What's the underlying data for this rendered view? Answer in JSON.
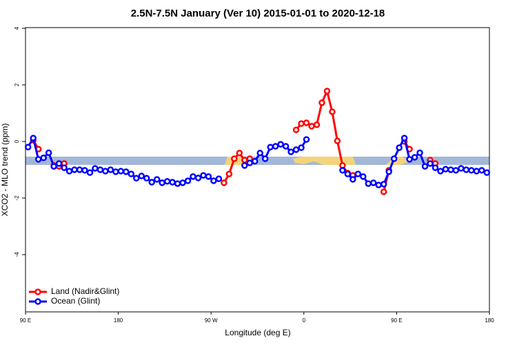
{
  "chart_data": {
    "type": "line",
    "title": "2.5N-7.5N January (Ver 10)   2015-01-01 to 2020-12-18",
    "x_label": "Longitude (deg E)",
    "y_label": "XCO2 - MLO trend (ppm)",
    "xlim": [
      90,
      540
    ],
    "ylim": [
      -6,
      4
    ],
    "xticks": [
      {
        "value": 90,
        "label": "90 E"
      },
      180,
      {
        "value": 270,
        "label": "90 W"
      },
      {
        "value": 360,
        "label": "0"
      },
      {
        "value": 450,
        "label": "90 E"
      },
      {
        "value": 540,
        "label": "180"
      }
    ],
    "yticks": [
      4,
      2,
      0,
      -2,
      -4
    ],
    "legend": "bottom-left",
    "x": [
      92.5,
      97.5,
      102.5,
      107.5,
      112.5,
      117.5,
      122.5,
      127.5,
      132.5,
      137.5,
      142.5,
      147.5,
      152.5,
      157.5,
      162.5,
      167.5,
      172.5,
      177.5,
      182.5,
      187.5,
      192.5,
      197.5,
      202.5,
      207.5,
      212.5,
      217.5,
      222.5,
      227.5,
      232.5,
      237.5,
      242.5,
      247.5,
      252.5,
      257.5,
      262.5,
      267.5,
      272.5,
      277.5,
      282.5,
      287.5,
      292.5,
      297.5,
      302.5,
      307.5,
      312.5,
      317.5,
      322.5,
      327.5,
      332.5,
      337.5,
      342.5,
      347.5,
      352.5,
      357.5,
      362.5,
      367.5,
      372.5,
      377.5,
      382.5,
      387.5,
      392.5,
      397.5,
      402.5,
      407.5,
      412.5,
      417.5,
      422.5,
      427.5,
      432.5,
      437.5,
      442.5,
      447.5,
      452.5,
      457.5,
      462.5,
      467.5,
      472.5,
      477.5,
      482.5,
      487.5,
      492.5,
      497.5,
      502.5,
      507.5,
      512.5,
      517.5,
      522.5,
      527.5,
      532.5,
      537.5
    ],
    "series": [
      {
        "name": "Land (Nadir&Glint)",
        "color": "#ff0000",
        "values": [
          null,
          0.05,
          -0.27,
          null,
          null,
          -0.85,
          -0.88,
          -0.78,
          null,
          null,
          null,
          null,
          null,
          null,
          null,
          null,
          null,
          null,
          null,
          null,
          null,
          null,
          null,
          null,
          null,
          null,
          null,
          null,
          null,
          null,
          null,
          null,
          null,
          null,
          null,
          null,
          null,
          null,
          -1.46,
          -1.15,
          -0.61,
          -0.41,
          -0.66,
          -0.61,
          null,
          null,
          null,
          null,
          null,
          null,
          null,
          null,
          0.41,
          0.63,
          0.66,
          0.54,
          0.59,
          1.37,
          1.78,
          1.05,
          0.02,
          -0.85,
          -1.12,
          -1.2,
          null,
          null,
          null,
          null,
          null,
          -1.78,
          -1.02,
          null,
          null,
          0.0,
          -0.27,
          null,
          null,
          null,
          -0.66,
          -0.78,
          null,
          null,
          null,
          null,
          null,
          null,
          null,
          null,
          null,
          null
        ]
      },
      {
        "name": "Ocean (Glint)",
        "color": "#0000ff",
        "values": [
          -0.2,
          0.12,
          -0.63,
          -0.58,
          -0.4,
          -0.88,
          -0.78,
          -0.93,
          -1.05,
          -1.0,
          -1.0,
          -1.02,
          -1.1,
          -0.95,
          -1.0,
          -1.05,
          -1.0,
          -1.07,
          -1.05,
          -1.07,
          -1.15,
          -1.3,
          -1.22,
          -1.3,
          -1.44,
          -1.34,
          -1.46,
          -1.41,
          -1.44,
          -1.49,
          -1.46,
          -1.39,
          -1.24,
          -1.29,
          -1.2,
          -1.24,
          -1.39,
          -1.32,
          null,
          null,
          null,
          null,
          -0.85,
          -0.76,
          -0.7,
          -0.41,
          -0.61,
          -0.2,
          -0.17,
          -0.1,
          -0.17,
          -0.37,
          -0.29,
          -0.22,
          0.07,
          null,
          null,
          null,
          null,
          null,
          null,
          -1.02,
          -1.15,
          -1.34,
          -1.15,
          -1.24,
          -1.49,
          -1.46,
          -1.54,
          -1.51,
          -1.07,
          -0.61,
          -0.22,
          0.12,
          -0.63,
          -0.56,
          -0.4,
          -0.88,
          -0.78,
          -0.93,
          -1.05,
          -0.98,
          -1.0,
          -1.02,
          -0.95,
          -1.0,
          -1.02,
          -1.05,
          -1.02,
          -1.1
        ]
      }
    ]
  }
}
